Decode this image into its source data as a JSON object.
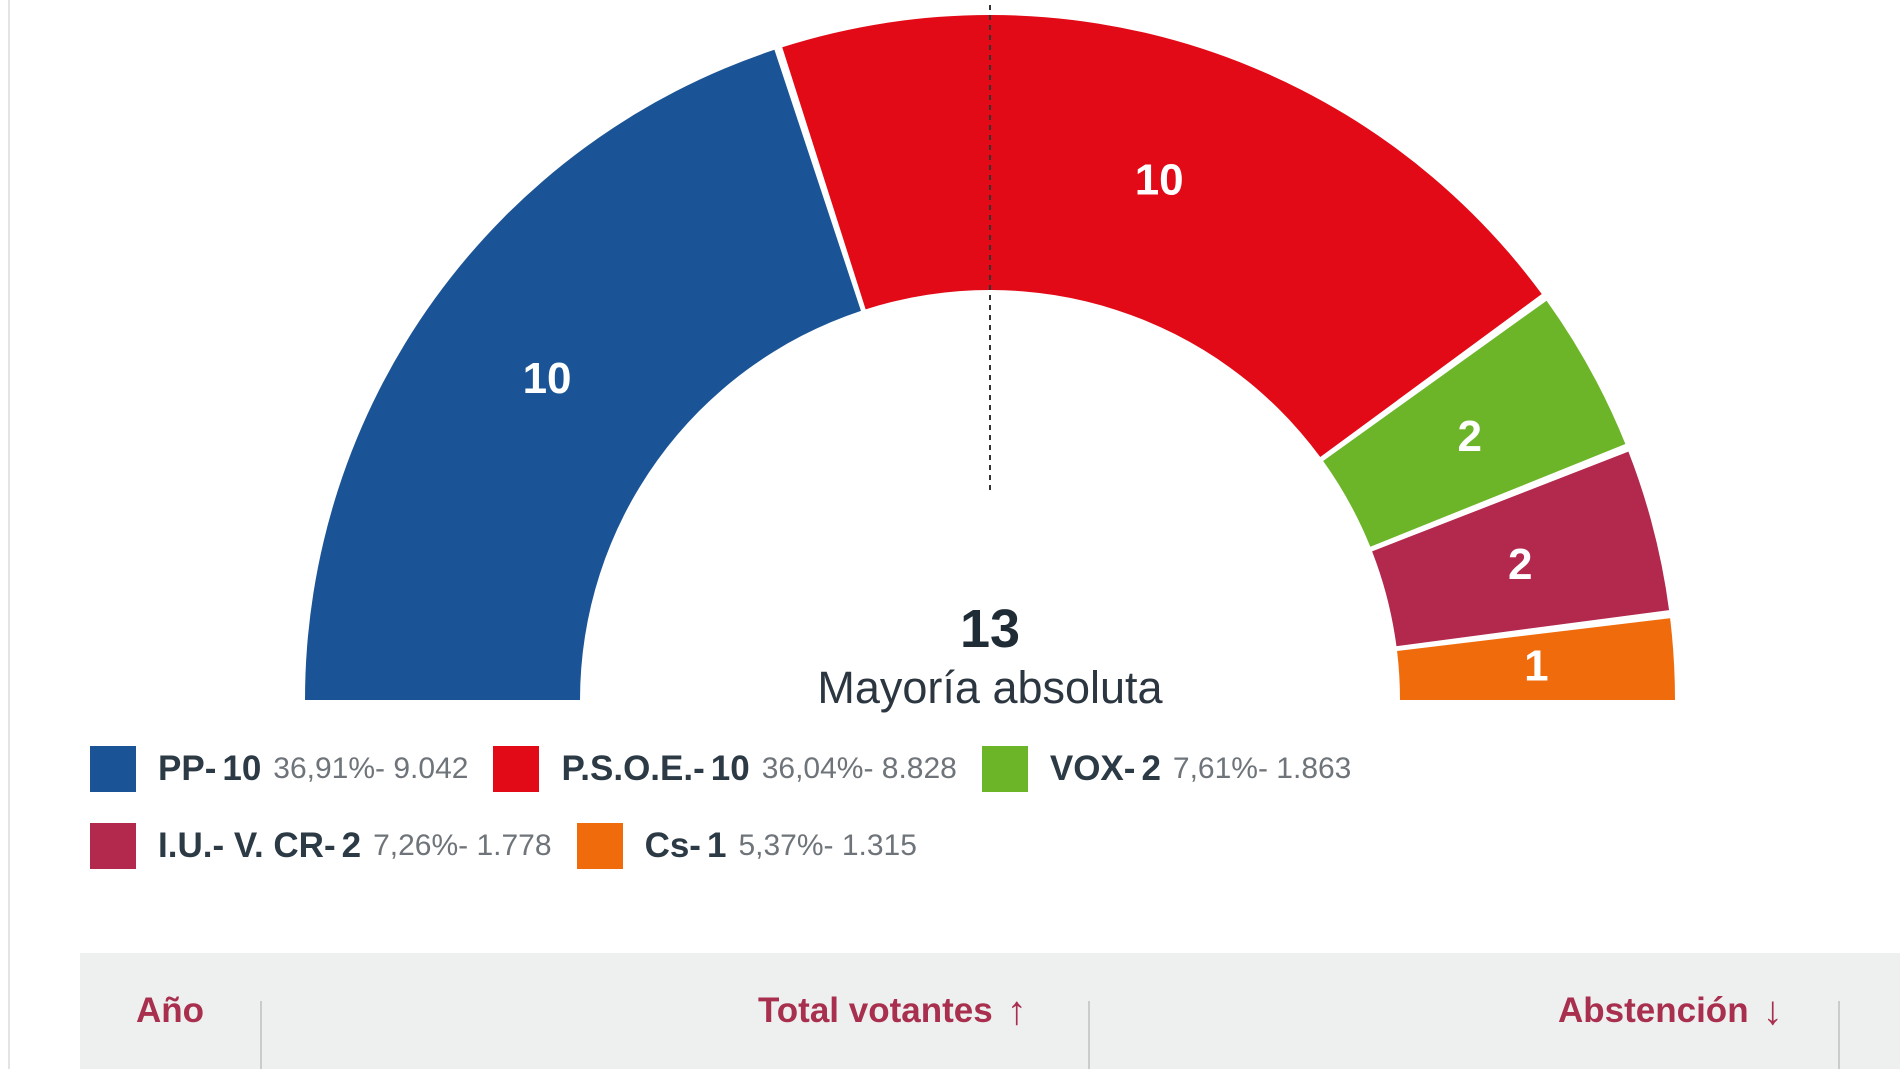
{
  "chart_data": {
    "type": "hemicycle",
    "total_seats": 25,
    "majority": {
      "value": "13",
      "label": "Mayoría absoluta"
    },
    "parties": [
      {
        "name": "PP-",
        "seats": 10,
        "seats_label": "10",
        "stats": "36,91%- 9.042",
        "color": "#1b5496"
      },
      {
        "name": "P.S.O.E.-",
        "seats": 10,
        "seats_label": "10",
        "stats": "36,04%- 8.828",
        "color": "#e20a16"
      },
      {
        "name": "VOX-",
        "seats": 2,
        "seats_label": "2",
        "stats": "7,61%- 1.863",
        "color": "#6cb529"
      },
      {
        "name": "I.U.- V. CR-",
        "seats": 2,
        "seats_label": "2",
        "stats": "7,26%- 1.778",
        "color": "#b3284d"
      },
      {
        "name": "Cs-",
        "seats": 1,
        "seats_label": "1",
        "stats": "5,37%- 1.315",
        "color": "#f06b0c"
      }
    ]
  },
  "table": {
    "columns": [
      {
        "label": "Año",
        "sort_icon": ""
      },
      {
        "label": "Total votantes",
        "sort_icon": "↑"
      },
      {
        "label": "Abstención",
        "sort_icon": "↓"
      }
    ]
  },
  "colors": {
    "header_text": "#a8304e",
    "header_bg": "#eef0f0"
  }
}
